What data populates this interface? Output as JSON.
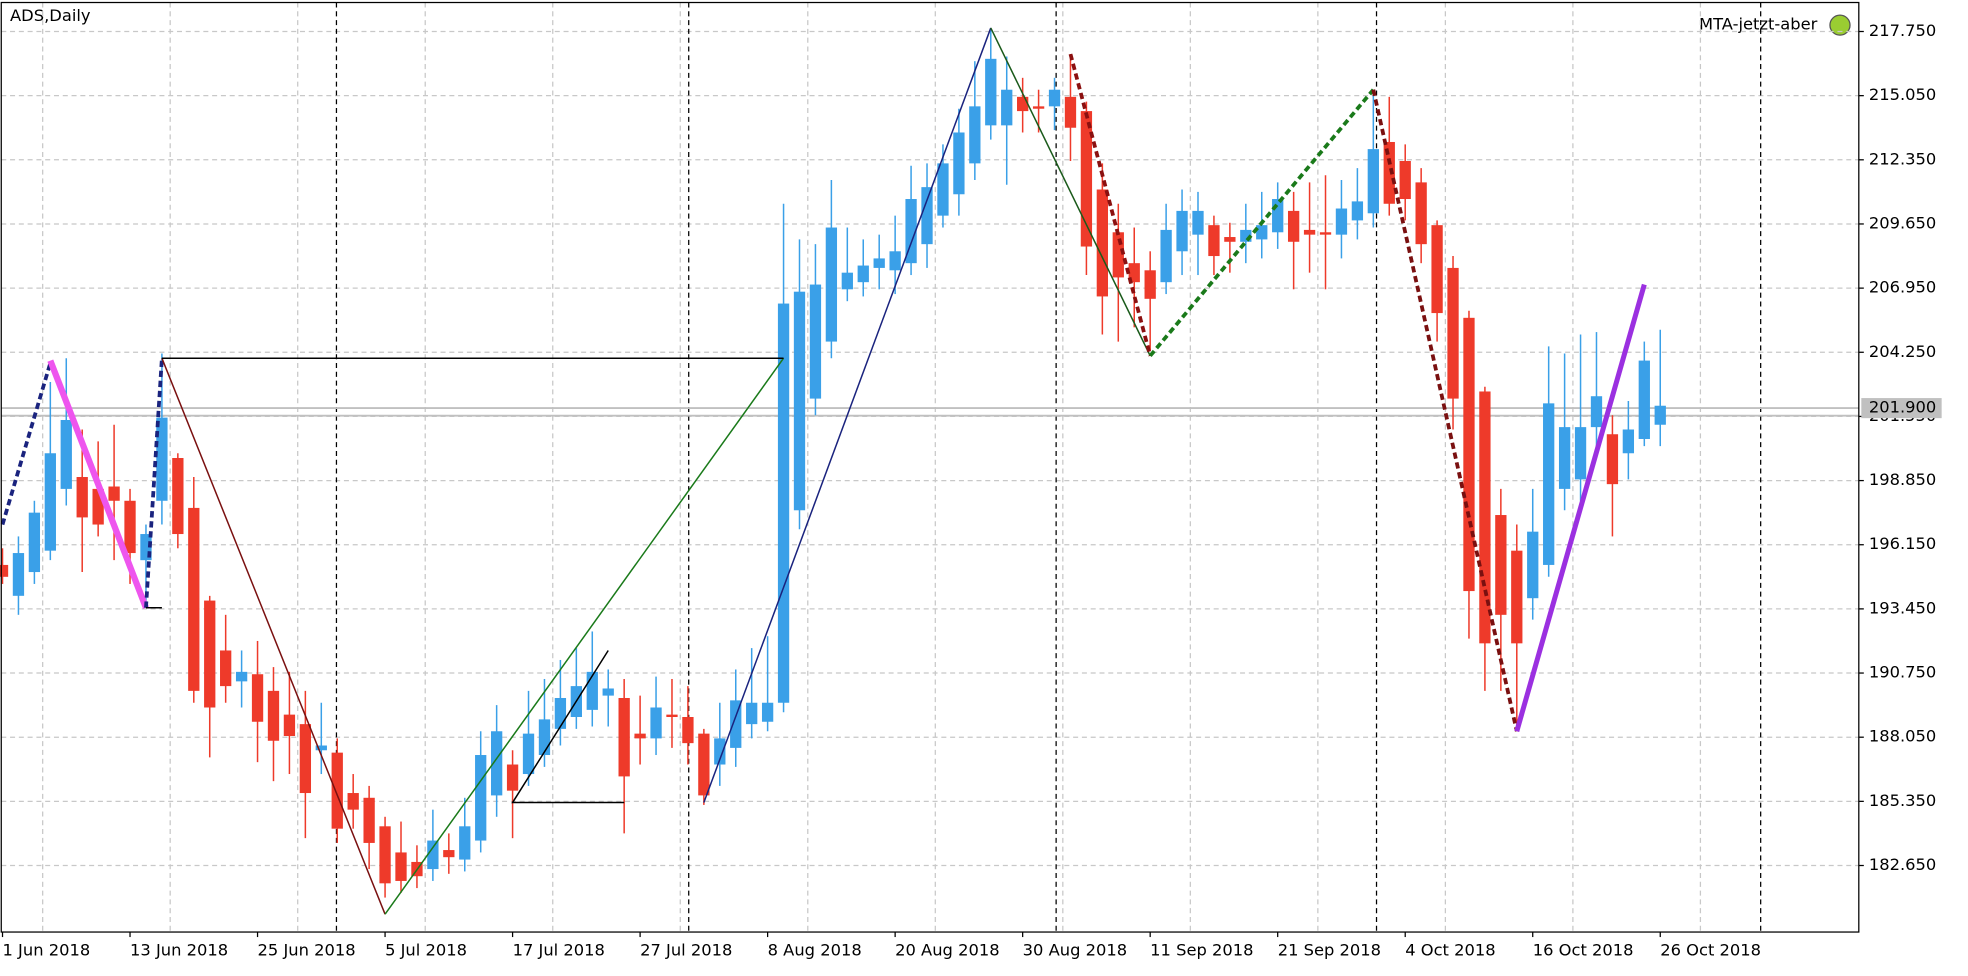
{
  "chart_data": {
    "type": "candlestick",
    "title": "ADS,Daily",
    "annotation": "MTA-jetzt-aber",
    "up_color": "#3aa0e8",
    "down_color": "#ee3a2a",
    "grid": true,
    "categories": [
      "1 Jun 2018",
      null,
      null,
      null,
      null,
      null,
      null,
      null,
      "13 Jun 2018",
      null,
      null,
      null,
      null,
      null,
      null,
      null,
      "25 Jun 2018",
      null,
      null,
      null,
      null,
      null,
      null,
      null,
      "5 Jul 2018",
      null,
      null,
      null,
      null,
      null,
      null,
      null,
      "17 Jul 2018",
      null,
      null,
      null,
      null,
      null,
      null,
      null,
      "27 Jul 2018",
      null,
      null,
      null,
      null,
      null,
      null,
      null,
      "8 Aug 2018",
      null,
      null,
      null,
      null,
      null,
      null,
      null,
      "20 Aug 2018",
      null,
      null,
      null,
      null,
      null,
      null,
      null,
      "30 Aug 2018",
      null,
      null,
      null,
      null,
      null,
      null,
      null,
      "11 Sep 2018",
      null,
      null,
      null,
      null,
      null,
      null,
      null,
      "21 Sep 2018",
      null,
      null,
      null,
      null,
      null,
      null,
      null,
      "4 Oct 2018",
      null,
      null,
      null,
      null,
      null,
      null,
      null,
      "16 Oct 2018",
      null,
      null,
      null,
      null,
      null,
      null,
      null,
      "26 Oct 2018"
    ],
    "open": [
      195.3,
      194.0,
      195.0,
      195.9,
      198.5,
      199.0,
      198.5,
      198.6,
      198.0,
      195.5,
      198.0,
      199.8,
      197.7,
      193.8,
      191.7,
      190.4,
      190.7,
      190.0,
      189.0,
      188.6,
      187.5,
      187.4,
      185.7,
      185.5,
      184.3,
      183.2,
      182.8,
      182.5,
      183.3,
      182.9,
      183.7,
      185.6,
      186.9,
      186.5,
      187.3,
      188.4,
      188.9,
      189.2,
      189.8,
      189.7,
      188.2,
      188.0,
      189.0,
      188.9,
      188.2,
      186.9,
      187.6,
      188.6,
      188.7,
      189.5,
      197.6,
      202.3,
      204.7,
      206.9,
      207.2,
      207.8,
      207.7,
      208.0,
      208.8,
      210.0,
      210.9,
      212.2,
      213.8,
      213.8,
      215.0,
      214.6,
      214.6,
      215.0,
      214.4,
      211.1,
      209.3,
      208.0,
      207.7,
      207.2,
      208.5,
      209.2,
      209.6,
      209.1,
      208.9,
      209.0,
      209.3,
      210.2,
      209.4,
      209.3,
      209.2,
      209.8,
      210.1,
      213.1,
      212.3,
      211.4,
      209.6,
      207.8,
      205.7,
      202.6,
      197.4,
      195.9,
      193.9,
      195.3,
      198.5,
      198.9,
      201.1,
      200.8,
      200.0,
      200.6,
      201.2
    ],
    "high": [
      196,
      196.5,
      198,
      203,
      204,
      201,
      200.5,
      201.2,
      198.5,
      197,
      204.2,
      200,
      199,
      194,
      193.2,
      191.7,
      192.1,
      191,
      190.8,
      190,
      189.5,
      188,
      186.5,
      186,
      184.7,
      184.5,
      183.5,
      185,
      184,
      185.5,
      188.3,
      189.4,
      187.5,
      190,
      190.5,
      191.3,
      191.8,
      192.5,
      190.9,
      190.5,
      189.8,
      190.6,
      190.5,
      190.2,
      188.4,
      189.5,
      190.9,
      191.8,
      192.3,
      210.5,
      209,
      208.8,
      211.5,
      209.5,
      209,
      209.2,
      210,
      212.1,
      212.2,
      213,
      214.5,
      216.5,
      217.8,
      216.7,
      215.8,
      215.3,
      215.8,
      216.8,
      214.8,
      212.2,
      210.5,
      209.5,
      208.5,
      210.5,
      211.1,
      211,
      210,
      209.7,
      210.5,
      211,
      211.4,
      211,
      211.4,
      211.7,
      211.5,
      212,
      215.1,
      215,
      213,
      212,
      209.8,
      208.3,
      206,
      202.8,
      198.5,
      197,
      198.5,
      204.5,
      204.2,
      205,
      205.1,
      201.6,
      202.2,
      204.7,
      205.2
    ],
    "low": [
      194.5,
      193.2,
      194.5,
      195.5,
      197.8,
      195,
      196.5,
      195.5,
      194.5,
      193.5,
      197,
      196,
      189.5,
      187.2,
      189.5,
      189.3,
      187,
      186.2,
      186.5,
      183.8,
      186.5,
      183.6,
      184.2,
      182.5,
      181.3,
      181.5,
      181.7,
      182,
      182.3,
      182.4,
      183.2,
      184.7,
      183.8,
      186,
      186.8,
      187.7,
      188.4,
      188.5,
      188.5,
      184,
      186.9,
      187.3,
      187.6,
      186.9,
      185.2,
      186,
      186.8,
      188,
      188.3,
      189.1,
      196.8,
      201.6,
      204,
      206.4,
      206.6,
      206.9,
      206.7,
      207.5,
      207.8,
      209.5,
      210,
      211.5,
      213.2,
      211.3,
      213.5,
      213.5,
      213.6,
      212.3,
      207.5,
      205,
      204.7,
      205.3,
      204.3,
      206.7,
      207.5,
      207.5,
      207.5,
      207.6,
      208,
      208.2,
      208.6,
      206.9,
      207.6,
      206.9,
      208.2,
      209,
      209.5,
      210,
      209.8,
      208,
      204.7,
      201,
      192.2,
      190,
      190,
      188.5,
      193,
      194.8,
      197.6,
      198,
      200,
      196.5,
      198.9,
      200.3,
      200.3
    ],
    "close": [
      194.8,
      195.8,
      197.5,
      200.0,
      201.4,
      197.3,
      197.0,
      198.0,
      195.8,
      196.6,
      201.5,
      196.6,
      190.0,
      189.3,
      190.2,
      190.8,
      188.7,
      187.9,
      188.1,
      185.7,
      187.7,
      184.2,
      185.0,
      183.6,
      181.9,
      182.0,
      182.2,
      183.7,
      183.0,
      184.3,
      187.3,
      188.3,
      185.8,
      188.2,
      188.8,
      189.7,
      190.2,
      190.8,
      190.1,
      186.4,
      188.0,
      189.3,
      188.9,
      187.8,
      185.6,
      188.0,
      189.6,
      189.5,
      189.5,
      206.3,
      206.8,
      207.1,
      209.5,
      207.6,
      207.9,
      208.2,
      208.5,
      210.7,
      211.2,
      212.2,
      213.5,
      214.6,
      216.6,
      215.3,
      214.4,
      214.5,
      215.3,
      213.7,
      208.7,
      206.6,
      207.4,
      207.2,
      206.5,
      209.4,
      210.2,
      210.2,
      208.3,
      208.9,
      209.4,
      209.6,
      210.7,
      208.9,
      209.2,
      209.2,
      210.3,
      210.6,
      212.8,
      210.5,
      210.7,
      208.8,
      205.9,
      202.3,
      194.2,
      192.0,
      193.2,
      192.0,
      196.7,
      202.1,
      201.1,
      201.1,
      202.4,
      198.7,
      201.0,
      203.9,
      202.0
    ],
    "ylim": [
      179.85,
      218.97
    ],
    "yticks": [
      {
        "value": 182.65,
        "label": "182.650"
      },
      {
        "value": 185.35,
        "label": "185.350"
      },
      {
        "value": 188.05,
        "label": "188.050"
      },
      {
        "value": 190.75,
        "label": "190.750"
      },
      {
        "value": 193.45,
        "label": "193.450"
      },
      {
        "value": 196.15,
        "label": "196.150"
      },
      {
        "value": 198.85,
        "label": "198.850"
      },
      {
        "value": 201.55,
        "label": "201.550"
      },
      {
        "value": 204.25,
        "label": "204.250"
      },
      {
        "value": 206.95,
        "label": "206.950"
      },
      {
        "value": 209.65,
        "label": "209.650"
      },
      {
        "value": 212.35,
        "label": "212.350"
      },
      {
        "value": 215.05,
        "label": "215.050"
      },
      {
        "value": 217.75,
        "label": "217.750"
      }
    ],
    "current_price": {
      "value": 201.9,
      "label": "201.900"
    },
    "lines": [
      {
        "color": "#1a237e",
        "dash": true,
        "width": 3,
        "x": [
          0,
          3
        ],
        "y": [
          197.0,
          203.8
        ]
      },
      {
        "color": "#ee55ee",
        "dash": false,
        "width": 5,
        "x": [
          3,
          9
        ],
        "y": [
          203.9,
          193.5
        ]
      },
      {
        "color": "#1a237e",
        "dash": true,
        "width": 3,
        "x": [
          9,
          10
        ],
        "y": [
          193.5,
          204.0
        ]
      },
      {
        "color": "#7a1010",
        "dash": false,
        "width": 1.2,
        "x": [
          10,
          24
        ],
        "y": [
          204.0,
          180.6
        ]
      },
      {
        "color": "#1a7a1a",
        "dash": false,
        "width": 1.2,
        "x": [
          24,
          49
        ],
        "y": [
          180.6,
          204.0
        ]
      },
      {
        "color": "#000000",
        "dash": false,
        "width": 1.2,
        "x": [
          10,
          49
        ],
        "y": [
          204.0,
          204.0
        ]
      },
      {
        "color": "#000000",
        "dash": false,
        "width": 1.2,
        "x": [
          9,
          10
        ],
        "y": [
          193.5,
          193.5
        ]
      },
      {
        "color": "#000000",
        "dash": false,
        "width": 1.2,
        "x": [
          32,
          39,
          32,
          38
        ],
        "y": [
          185.3,
          185.3,
          185.3,
          191.7
        ]
      },
      {
        "color": "#1a237e",
        "dash": false,
        "width": 1.2,
        "x": [
          44,
          62
        ],
        "y": [
          185.3,
          217.9
        ]
      },
      {
        "color": "#1a5a1a",
        "dash": false,
        "width": 1.2,
        "x": [
          62,
          72
        ],
        "y": [
          217.9,
          204.1
        ]
      },
      {
        "color": "#8b1010",
        "dash": true,
        "width": 3,
        "x": [
          67,
          72
        ],
        "y": [
          216.8,
          204.1
        ]
      },
      {
        "color": "#1a7a1a",
        "dash": true,
        "width": 3,
        "x": [
          72,
          86
        ],
        "y": [
          204.1,
          215.3
        ]
      },
      {
        "color": "#7a1010",
        "dash": true,
        "width": 3,
        "x": [
          86,
          95
        ],
        "y": [
          215.3,
          188.3
        ]
      },
      {
        "color": "#9b30e0",
        "dash": false,
        "width": 4,
        "x": [
          95,
          103
        ],
        "y": [
          188.3,
          207.1
        ]
      }
    ]
  }
}
